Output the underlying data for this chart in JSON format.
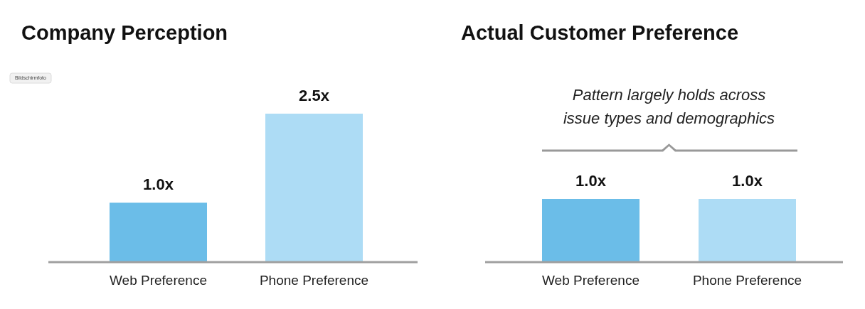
{
  "chart_data": [
    {
      "type": "bar",
      "title": "Company Perception",
      "categories": [
        "Web Preference",
        "Phone Preference"
      ],
      "values": [
        1.0,
        2.5
      ],
      "colors": [
        "#6bbde8",
        "#addcf5"
      ],
      "value_labels": [
        "1.0x",
        "2.5x"
      ],
      "annotations": [
        "Bildschirmfoto"
      ]
    },
    {
      "type": "bar",
      "title": "Actual Customer Preference",
      "categories": [
        "Web Preference",
        "Phone Preference"
      ],
      "values": [
        1.0,
        1.0
      ],
      "colors": [
        "#6bbde8",
        "#addcf5"
      ],
      "value_labels": [
        "1.0x",
        "1.0x"
      ],
      "annotations": [
        "Pattern largely holds across issue types and demographics"
      ]
    }
  ]
}
